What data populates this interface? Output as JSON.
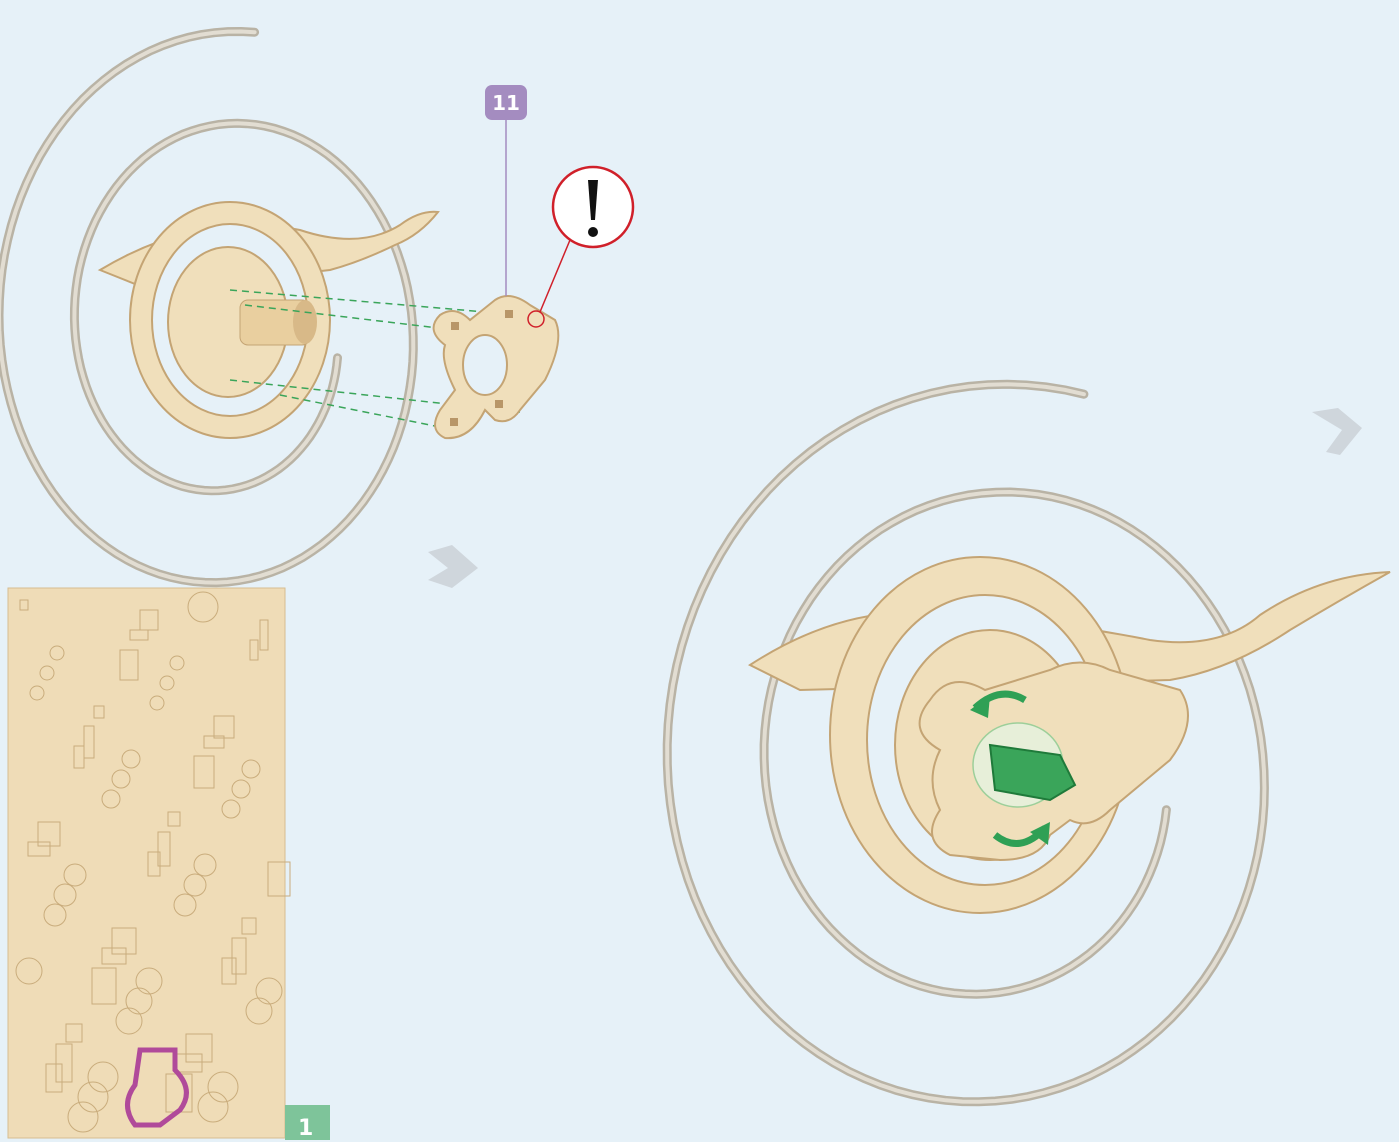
{
  "step_part_label": "11",
  "sheet_label": "1"
}
